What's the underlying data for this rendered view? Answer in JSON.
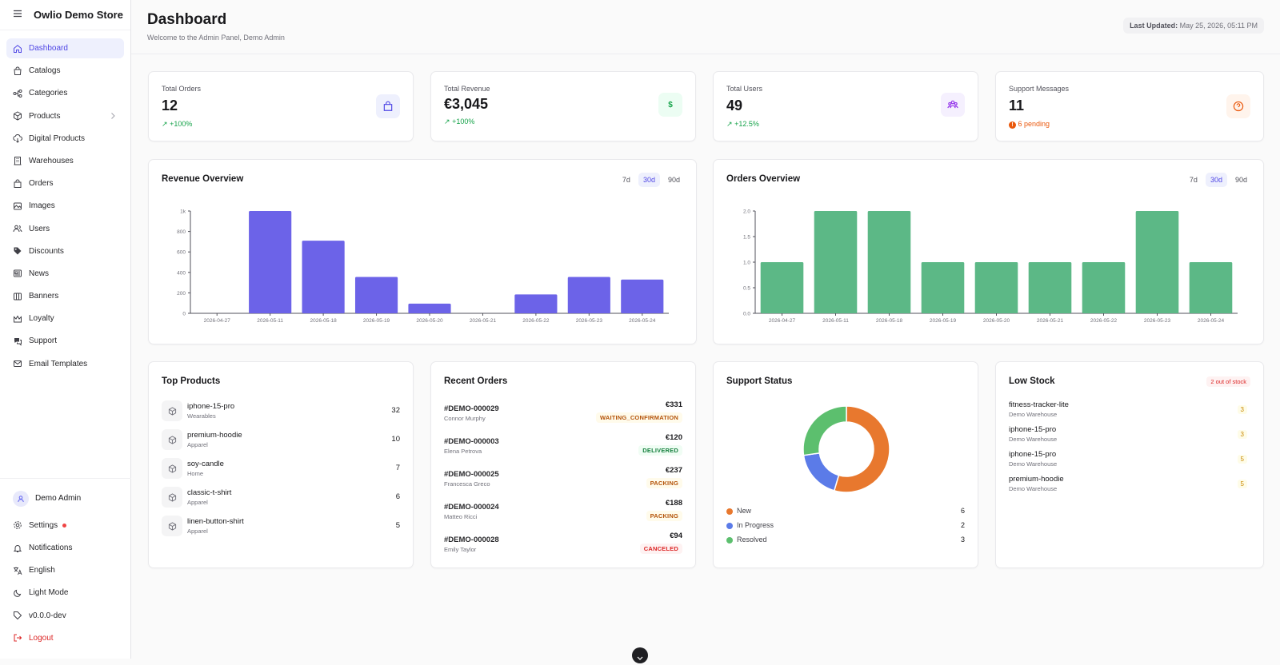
{
  "app": {
    "title": "Owlio Demo Store"
  },
  "sidebar": {
    "items": [
      {
        "label": "Dashboard",
        "icon": "home-icon",
        "active": true
      },
      {
        "label": "Catalogs",
        "icon": "shopping-bag-icon"
      },
      {
        "label": "Categories",
        "icon": "sitemap-icon"
      },
      {
        "label": "Products",
        "icon": "box-icon",
        "has_submenu": true
      },
      {
        "label": "Digital Products",
        "icon": "cloud-download-icon"
      },
      {
        "label": "Warehouses",
        "icon": "building-icon"
      },
      {
        "label": "Orders",
        "icon": "bag-icon"
      },
      {
        "label": "Images",
        "icon": "image-icon"
      },
      {
        "label": "Users",
        "icon": "users-icon"
      },
      {
        "label": "Discounts",
        "icon": "tag-icon"
      },
      {
        "label": "News",
        "icon": "newspaper-icon"
      },
      {
        "label": "Banners",
        "icon": "columns-icon"
      },
      {
        "label": "Loyalty",
        "icon": "crown-icon"
      },
      {
        "label": "Support",
        "icon": "chat-icon"
      },
      {
        "label": "Email Templates",
        "icon": "mail-icon"
      }
    ],
    "user": {
      "name": "Demo Admin"
    },
    "bottom": [
      {
        "label": "Settings",
        "icon": "gear-icon"
      },
      {
        "label": "Notifications",
        "icon": "bell-icon"
      },
      {
        "label": "English",
        "icon": "translate-icon"
      },
      {
        "label": "Light Mode",
        "icon": "moon-icon"
      },
      {
        "label": "v0.0.0-dev",
        "icon": "tag-outline-icon"
      },
      {
        "label": "Logout",
        "icon": "logout-icon"
      }
    ]
  },
  "header": {
    "title": "Dashboard",
    "subtitle": "Welcome to the Admin Panel, Demo Admin",
    "last_updated_label": "Last Updated:",
    "last_updated_value": "May 25, 2026, 05:11 PM"
  },
  "stats": [
    {
      "label": "Total Orders",
      "value": "12",
      "trend": "+100%",
      "icon": "bag-icon",
      "color": "#4f46e5",
      "bg": "#eef0fd"
    },
    {
      "label": "Total Revenue",
      "value": "€3,045",
      "trend": "+100%",
      "icon": "dollar-icon",
      "color": "#16a34a",
      "bg": "#ecfdf3"
    },
    {
      "label": "Total Users",
      "value": "49",
      "trend": "+12.5%",
      "icon": "users-icon",
      "color": "#9333ea",
      "bg": "#f5f0fe"
    },
    {
      "label": "Support Messages",
      "value": "11",
      "trend": "6 pending",
      "icon": "help-circle-icon",
      "color": "#ea580c",
      "bg": "#fff4ec"
    }
  ],
  "ranges": [
    "7d",
    "30d",
    "90d"
  ],
  "revenue_chart": {
    "title": "Revenue Overview",
    "active_range": "30d"
  },
  "orders_chart": {
    "title": "Orders Overview",
    "active_range": "30d"
  },
  "chart_data": [
    {
      "type": "bar",
      "title": "Revenue Overview",
      "categories": [
        "2026-04-27",
        "2026-05-11",
        "2026-05-18",
        "2026-05-19",
        "2026-05-20",
        "2026-05-21",
        "2026-05-22",
        "2026-05-23",
        "2026-05-24"
      ],
      "values": [
        0,
        1000,
        710,
        355,
        95,
        0,
        185,
        355,
        330
      ],
      "yticks": [
        "0",
        "200",
        "400",
        "600",
        "800",
        "1k"
      ],
      "ylim": [
        0,
        1000
      ],
      "color": "#6c63e8"
    },
    {
      "type": "bar",
      "title": "Orders Overview",
      "categories": [
        "2026-04-27",
        "2026-05-11",
        "2026-05-18",
        "2026-05-19",
        "2026-05-20",
        "2026-05-21",
        "2026-05-22",
        "2026-05-23",
        "2026-05-24"
      ],
      "values": [
        1,
        2,
        2,
        1,
        1,
        1,
        1,
        2,
        1
      ],
      "yticks": [
        "0.0",
        "0.5",
        "1.0",
        "1.5",
        "2.0"
      ],
      "ylim": [
        0,
        2
      ],
      "color": "#5cb886"
    },
    {
      "type": "pie",
      "title": "Support Status",
      "labels": [
        "New",
        "In Progress",
        "Resolved"
      ],
      "values": [
        6,
        2,
        3
      ],
      "colors": [
        "#e8782e",
        "#5b7be8",
        "#5cbf6e"
      ]
    }
  ],
  "top_products": {
    "title": "Top Products",
    "items": [
      {
        "name": "iphone-15-pro",
        "category": "Wearables",
        "qty": "32"
      },
      {
        "name": "premium-hoodie",
        "category": "Apparel",
        "qty": "10"
      },
      {
        "name": "soy-candle",
        "category": "Home",
        "qty": "7"
      },
      {
        "name": "classic-t-shirt",
        "category": "Apparel",
        "qty": "6"
      },
      {
        "name": "linen-button-shirt",
        "category": "Apparel",
        "qty": "5"
      }
    ]
  },
  "recent_orders": {
    "title": "Recent Orders",
    "items": [
      {
        "id": "#DEMO-000029",
        "customer": "Connor Murphy",
        "amount": "€331",
        "status": "WAITING_CONFIRMATION",
        "color": "#b45309",
        "bg": "#fffbeb"
      },
      {
        "id": "#DEMO-000003",
        "customer": "Elena Petrova",
        "amount": "€120",
        "status": "DELIVERED",
        "color": "#15803d",
        "bg": "#f0fdf4"
      },
      {
        "id": "#DEMO-000025",
        "customer": "Francesca Greco",
        "amount": "€237",
        "status": "PACKING",
        "color": "#b45309",
        "bg": "#fffbeb"
      },
      {
        "id": "#DEMO-000024",
        "customer": "Matteo Ricci",
        "amount": "€188",
        "status": "PACKING",
        "color": "#b45309",
        "bg": "#fffbeb"
      },
      {
        "id": "#DEMO-000028",
        "customer": "Emily Taylor",
        "amount": "€94",
        "status": "CANCELED",
        "color": "#dc2626",
        "bg": "#fef2f2"
      }
    ]
  },
  "support_status": {
    "title": "Support Status",
    "legend": [
      {
        "label": "New",
        "value": "6",
        "color": "#e8782e"
      },
      {
        "label": "In Progress",
        "value": "2",
        "color": "#5b7be8"
      },
      {
        "label": "Resolved",
        "value": "3",
        "color": "#5cbf6e"
      }
    ]
  },
  "low_stock": {
    "title": "Low Stock",
    "badge": "2 out of stock",
    "items": [
      {
        "name": "fitness-tracker-lite",
        "warehouse": "Demo Warehouse",
        "qty": "3"
      },
      {
        "name": "iphone-15-pro",
        "warehouse": "Demo Warehouse",
        "qty": "3"
      },
      {
        "name": "iphone-15-pro",
        "warehouse": "Demo Warehouse",
        "qty": "5"
      },
      {
        "name": "premium-hoodie",
        "warehouse": "Demo Warehouse",
        "qty": "5"
      }
    ]
  }
}
